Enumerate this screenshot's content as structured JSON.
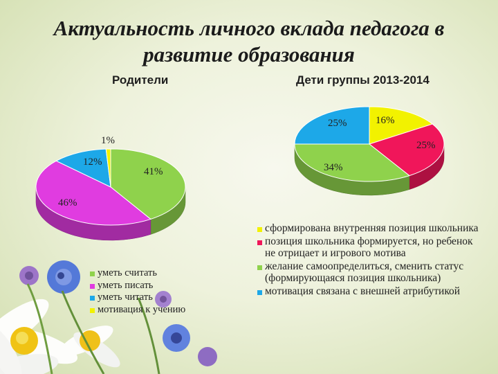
{
  "slide": {
    "title_line1": "Актуальность личного вклада педагога в",
    "title_line2": "развитие образования"
  },
  "colors": {
    "yellow": "#f2f200",
    "magenta": "#e03ce0",
    "green": "#8fd24c",
    "cyan": "#1da8e8",
    "red": "#f0165a"
  },
  "chart_data": [
    {
      "type": "pie",
      "title": "Родители",
      "slices": [
        {
          "label": "уметь считать",
          "value": 41,
          "display": "41%",
          "color": "#8fd24c"
        },
        {
          "label": "уметь писать",
          "value": 46,
          "display": "46%",
          "color": "#e03ce0"
        },
        {
          "label": "уметь читать",
          "value": 12,
          "display": "12%",
          "color": "#1da8e8"
        },
        {
          "label": "мотивация к учению",
          "value": 1,
          "display": "1%",
          "color": "#f2f200"
        }
      ],
      "legend_placement": "bottom-left"
    },
    {
      "type": "pie",
      "title": "Дети группы 2013-2014",
      "slices": [
        {
          "label": "сформирована внутренняя позиция школьника",
          "value": 16,
          "display": "16%",
          "color": "#f2f200"
        },
        {
          "label": "позиция школьника формируется, но ребенок не отрицает и игрового мотива",
          "value": 25,
          "display": "25%",
          "color": "#f0165a"
        },
        {
          "label": "желание самоопределиться, сменить статус (формирующаяся позиция школьника)",
          "value": 34,
          "display": "34%",
          "color": "#8fd24c"
        },
        {
          "label": "мотивация связана с внешней атрибутикой",
          "value": 25,
          "display": "25%",
          "color": "#1da8e8"
        }
      ],
      "legend_placement": "bottom-right"
    }
  ]
}
